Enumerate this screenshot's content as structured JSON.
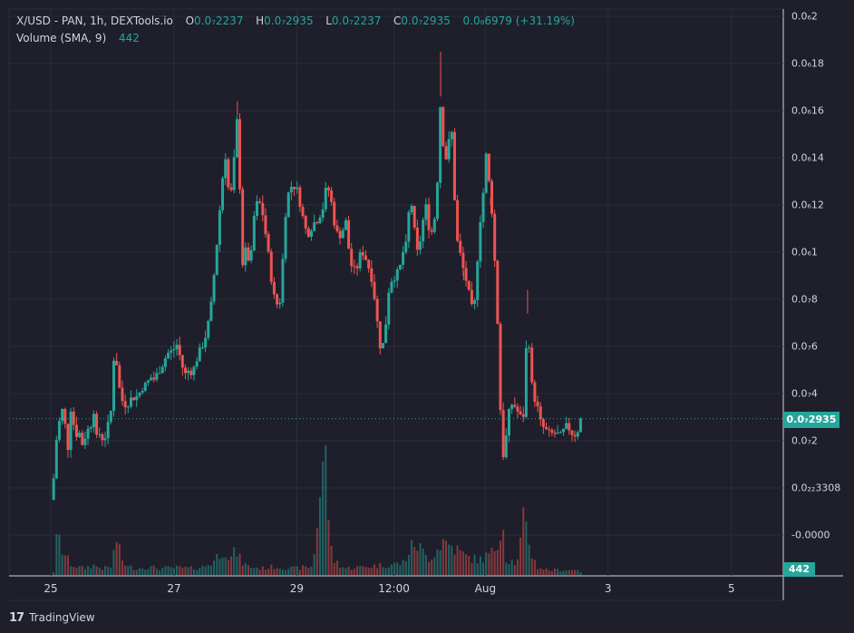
{
  "legend": {
    "symbol": "X/USD - PAN, 1h, DEXTools.io",
    "open_label": "O",
    "open": "0.0₇2237",
    "high_label": "H",
    "high": "0.0₇2935",
    "low_label": "L",
    "low": "0.0₇2237",
    "close_label": "C",
    "close": "0.0₇2935",
    "change": "0.0₈6979 (+31.19%)",
    "volume_label": "Volume (SMA, 9)",
    "volume": "442"
  },
  "price_tag": "0.0₇2935",
  "volume_tag": "442",
  "footer": {
    "brand": "TradingView"
  },
  "colors": {
    "up": "#26a69a",
    "down": "#ef5350",
    "background": "#1e1f2b"
  },
  "chart_data": {
    "type": "candlestick",
    "interval": "1h",
    "y_axis_labels": [
      "0.0₆2",
      "0.0₆18",
      "0.0₆16",
      "0.0₆14",
      "0.0₆12",
      "0.0₆1",
      "0.0₇8",
      "0.0₇6",
      "0.0₇4",
      "0.0₇2",
      "0.0₂₂3308",
      "-0.0000"
    ],
    "y_axis_values": [
      2e-07,
      1.8e-07,
      1.6e-07,
      1.4e-07,
      1.2e-07,
      1e-07,
      8e-08,
      6e-08,
      4e-08,
      2e-08,
      0,
      -2e-08
    ],
    "x_axis_labels": [
      "25",
      "27",
      "29",
      "12:00",
      "Aug",
      "3",
      "5"
    ],
    "x_axis_positions": [
      0,
      0.193,
      0.385,
      0.537,
      0.68,
      0.872,
      1.065
    ],
    "last_close": 2.935e-08,
    "price_path": [
      [
        0.0,
        -0.5
      ],
      [
        0.004,
        0.2
      ],
      [
        0.008,
        1.9
      ],
      [
        0.014,
        2.9
      ],
      [
        0.02,
        3.5
      ],
      [
        0.026,
        1.4
      ],
      [
        0.032,
        3.6
      ],
      [
        0.038,
        2.2
      ],
      [
        0.044,
        2.4
      ],
      [
        0.05,
        1.8
      ],
      [
        0.056,
        2.4
      ],
      [
        0.062,
        2.6
      ],
      [
        0.068,
        3.4
      ],
      [
        0.072,
        2.0
      ],
      [
        0.076,
        2.3
      ],
      [
        0.08,
        2.1
      ],
      [
        0.086,
        2.2
      ],
      [
        0.094,
        3.2
      ],
      [
        0.1,
        6.2
      ],
      [
        0.106,
        4.4
      ],
      [
        0.112,
        3.7
      ],
      [
        0.118,
        3.5
      ],
      [
        0.126,
        3.8
      ],
      [
        0.136,
        3.9
      ],
      [
        0.144,
        4.3
      ],
      [
        0.15,
        4.4
      ],
      [
        0.156,
        4.7
      ],
      [
        0.162,
        4.6
      ],
      [
        0.17,
        5.0
      ],
      [
        0.176,
        5.3
      ],
      [
        0.182,
        5.7
      ],
      [
        0.19,
        5.8
      ],
      [
        0.198,
        6.1
      ],
      [
        0.204,
        5.3
      ],
      [
        0.21,
        4.8
      ],
      [
        0.216,
        5.0
      ],
      [
        0.222,
        4.9
      ],
      [
        0.23,
        5.6
      ],
      [
        0.238,
        6.1
      ],
      [
        0.244,
        6.6
      ],
      [
        0.25,
        7.5
      ],
      [
        0.256,
        9.2
      ],
      [
        0.262,
        11.0
      ],
      [
        0.268,
        13.0
      ],
      [
        0.274,
        14.2
      ],
      [
        0.28,
        11.9
      ],
      [
        0.286,
        13.6
      ],
      [
        0.292,
        15.8
      ],
      [
        0.296,
        12.6
      ],
      [
        0.3,
        9.5
      ],
      [
        0.306,
        10.2
      ],
      [
        0.312,
        9.3
      ],
      [
        0.318,
        11.5
      ],
      [
        0.324,
        12.2
      ],
      [
        0.33,
        11.9
      ],
      [
        0.336,
        10.8
      ],
      [
        0.342,
        9.6
      ],
      [
        0.348,
        8.2
      ],
      [
        0.354,
        7.8
      ],
      [
        0.36,
        8.0
      ],
      [
        0.366,
        11.4
      ],
      [
        0.372,
        12.5
      ],
      [
        0.378,
        12.9
      ],
      [
        0.386,
        12.6
      ],
      [
        0.392,
        11.8
      ],
      [
        0.398,
        11.0
      ],
      [
        0.404,
        10.8
      ],
      [
        0.41,
        11.2
      ],
      [
        0.418,
        11.4
      ],
      [
        0.426,
        11.9
      ],
      [
        0.432,
        12.9
      ],
      [
        0.438,
        12.3
      ],
      [
        0.444,
        11.2
      ],
      [
        0.45,
        10.6
      ],
      [
        0.456,
        10.9
      ],
      [
        0.462,
        11.3
      ],
      [
        0.468,
        9.6
      ],
      [
        0.474,
        9.2
      ],
      [
        0.48,
        9.4
      ],
      [
        0.486,
        10.1
      ],
      [
        0.492,
        9.8
      ],
      [
        0.498,
        9.3
      ],
      [
        0.504,
        8.7
      ],
      [
        0.51,
        7.2
      ],
      [
        0.516,
        5.9
      ],
      [
        0.522,
        6.2
      ],
      [
        0.528,
        8.3
      ],
      [
        0.534,
        8.9
      ],
      [
        0.54,
        9.0
      ],
      [
        0.546,
        9.3
      ],
      [
        0.552,
        10.1
      ],
      [
        0.558,
        10.4
      ],
      [
        0.562,
        12.7
      ],
      [
        0.568,
        11.1
      ],
      [
        0.574,
        9.9
      ],
      [
        0.58,
        10.8
      ],
      [
        0.586,
        12.1
      ],
      [
        0.592,
        11.0
      ],
      [
        0.598,
        10.8
      ],
      [
        0.604,
        12.4
      ],
      [
        0.61,
        16.6
      ],
      [
        0.616,
        13.6
      ],
      [
        0.622,
        14.6
      ],
      [
        0.628,
        15.1
      ],
      [
        0.634,
        10.7
      ],
      [
        0.64,
        10.0
      ],
      [
        0.646,
        9.2
      ],
      [
        0.652,
        8.6
      ],
      [
        0.658,
        7.6
      ],
      [
        0.664,
        7.9
      ],
      [
        0.67,
        10.9
      ],
      [
        0.676,
        12.3
      ],
      [
        0.682,
        14.4
      ],
      [
        0.686,
        12.8
      ],
      [
        0.69,
        11.8
      ],
      [
        0.694,
        9.9
      ],
      [
        0.698,
        7.9
      ],
      [
        0.702,
        4.6
      ],
      [
        0.706,
        1.3
      ],
      [
        0.71,
        1.5
      ],
      [
        0.716,
        3.1
      ],
      [
        0.722,
        3.6
      ],
      [
        0.728,
        3.4
      ],
      [
        0.734,
        3.0
      ],
      [
        0.74,
        3.1
      ],
      [
        0.746,
        7.4
      ],
      [
        0.75,
        5.2
      ],
      [
        0.754,
        4.0
      ],
      [
        0.76,
        3.6
      ],
      [
        0.766,
        2.8
      ],
      [
        0.772,
        2.5
      ],
      [
        0.78,
        2.3
      ],
      [
        0.79,
        2.3
      ],
      [
        0.798,
        2.2
      ],
      [
        0.806,
        2.6
      ],
      [
        0.812,
        2.5
      ],
      [
        0.818,
        2.2
      ],
      [
        0.824,
        2.4
      ],
      [
        0.829,
        2.9
      ]
    ],
    "wick_spikes": [
      [
        0.292,
        16.4
      ],
      [
        0.61,
        18.5
      ],
      [
        0.646,
        8.8
      ],
      [
        0.688,
        12.0
      ],
      [
        0.746,
        8.4
      ]
    ],
    "volume_path": [
      [
        0.008,
        38
      ],
      [
        0.012,
        45
      ],
      [
        0.018,
        30
      ],
      [
        0.024,
        22
      ],
      [
        0.03,
        14
      ],
      [
        0.04,
        10
      ],
      [
        0.052,
        8
      ],
      [
        0.066,
        12
      ],
      [
        0.082,
        8
      ],
      [
        0.096,
        10
      ],
      [
        0.102,
        48
      ],
      [
        0.11,
        20
      ],
      [
        0.12,
        10
      ],
      [
        0.136,
        8
      ],
      [
        0.15,
        10
      ],
      [
        0.17,
        8
      ],
      [
        0.2,
        9
      ],
      [
        0.22,
        8
      ],
      [
        0.24,
        10
      ],
      [
        0.254,
        16
      ],
      [
        0.264,
        26
      ],
      [
        0.272,
        34
      ],
      [
        0.28,
        18
      ],
      [
        0.29,
        30
      ],
      [
        0.298,
        16
      ],
      [
        0.31,
        10
      ],
      [
        0.33,
        8
      ],
      [
        0.35,
        10
      ],
      [
        0.38,
        8
      ],
      [
        0.41,
        10
      ],
      [
        0.428,
        155
      ],
      [
        0.432,
        120
      ],
      [
        0.436,
        60
      ],
      [
        0.44,
        20
      ],
      [
        0.46,
        8
      ],
      [
        0.49,
        10
      ],
      [
        0.52,
        12
      ],
      [
        0.55,
        14
      ],
      [
        0.57,
        40
      ],
      [
        0.59,
        20
      ],
      [
        0.604,
        30
      ],
      [
        0.612,
        42
      ],
      [
        0.63,
        34
      ],
      [
        0.65,
        22
      ],
      [
        0.67,
        18
      ],
      [
        0.69,
        26
      ],
      [
        0.7,
        40
      ],
      [
        0.706,
        78
      ],
      [
        0.712,
        20
      ],
      [
        0.73,
        14
      ],
      [
        0.74,
        66
      ],
      [
        0.746,
        50
      ],
      [
        0.752,
        28
      ],
      [
        0.76,
        10
      ],
      [
        0.78,
        6
      ],
      [
        0.8,
        6
      ],
      [
        0.82,
        6
      ],
      [
        0.828,
        8
      ]
    ]
  }
}
